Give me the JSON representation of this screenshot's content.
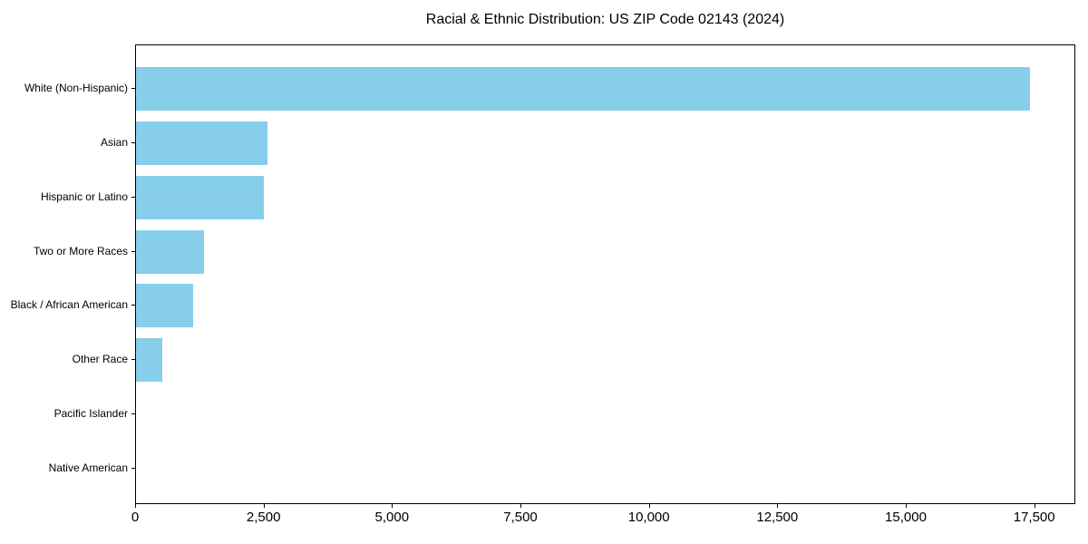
{
  "page": {
    "title": "Racial & Ethnic Distribution: US ZIP Code 02143 (2024)"
  },
  "chart_data": {
    "type": "bar",
    "orientation": "horizontal",
    "title": "Racial & Ethnic Distribution: US ZIP Code 02143 (2024)",
    "categories": [
      "White (Non-Hispanic)",
      "Asian",
      "Hispanic or Latino",
      "Two or More Races",
      "Black / African American",
      "Other Race",
      "Pacific Islander",
      "Native American"
    ],
    "values": [
      17430,
      2560,
      2490,
      1330,
      1110,
      510,
      0,
      0
    ],
    "xlabel": "",
    "ylabel": "",
    "xlim": [
      0,
      18300
    ],
    "x_ticks": [
      0,
      2500,
      5000,
      7500,
      10000,
      12500,
      15000,
      17500
    ],
    "x_tick_labels": [
      "0",
      "2,500",
      "5,000",
      "7,500",
      "10,000",
      "12,500",
      "15,000",
      "17,500"
    ],
    "bar_color": "#87CEEB",
    "axis_color": "#000000",
    "text_color": "#000000",
    "background_color": "#ffffff",
    "grid": false,
    "legend": "none"
  }
}
